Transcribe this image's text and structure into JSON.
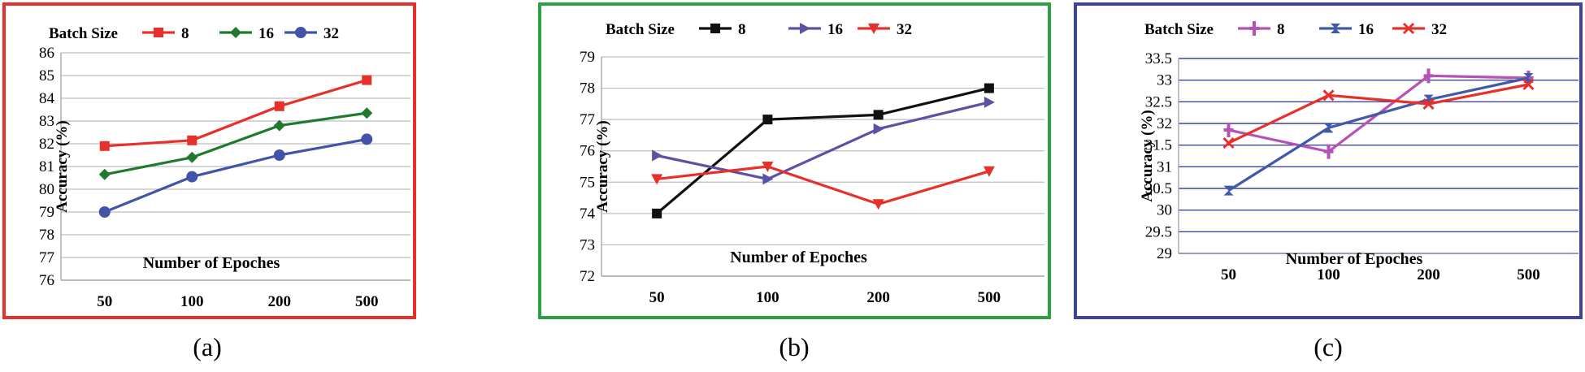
{
  "chart_data": [
    {
      "type": "line",
      "panel": "(a)",
      "frame_color": "#e8302a",
      "legend_title": "Batch Size",
      "categories": [
        "50",
        "100",
        "200",
        "500"
      ],
      "xlabel": "Number of Epoches",
      "ylabel": "Accuracy (%)",
      "ylim": [
        76,
        86
      ],
      "ystep": 1,
      "ytick_labels": [
        "76",
        "77",
        "78",
        "79",
        "80",
        "81",
        "82",
        "83",
        "84",
        "85",
        "86"
      ],
      "grid": true,
      "grid_color": "#bdbdbd",
      "series": [
        {
          "name": "8",
          "color": "#e8302a",
          "marker": "square",
          "values": [
            81.9,
            82.15,
            83.65,
            84.8
          ]
        },
        {
          "name": "16",
          "color": "#1f7a2e",
          "marker": "diamond",
          "values": [
            80.65,
            81.4,
            82.8,
            83.35
          ]
        },
        {
          "name": "32",
          "color": "#4253a8",
          "marker": "circle",
          "values": [
            79.0,
            80.55,
            81.5,
            82.2
          ]
        }
      ]
    },
    {
      "type": "line",
      "panel": "(b)",
      "frame_color": "#2ea043",
      "legend_title": "Batch Size",
      "categories": [
        "50",
        "100",
        "200",
        "500"
      ],
      "xlabel": "Number of Epoches",
      "ylabel": "Accuracy (%)",
      "ylim": [
        72,
        79
      ],
      "ystep": 1,
      "ytick_labels": [
        "72",
        "73",
        "74",
        "75",
        "76",
        "77",
        "78",
        "79"
      ],
      "grid": true,
      "grid_color": "#bdbdbd",
      "series": [
        {
          "name": "8",
          "color": "#111111",
          "marker": "square",
          "values": [
            74.0,
            77.0,
            77.15,
            78.0
          ]
        },
        {
          "name": "16",
          "color": "#5a52a3",
          "marker": "triangle-right",
          "values": [
            75.85,
            75.1,
            76.7,
            77.55
          ]
        },
        {
          "name": "32",
          "color": "#e8302a",
          "marker": "triangle-down",
          "values": [
            75.1,
            75.5,
            74.3,
            75.35
          ]
        }
      ]
    },
    {
      "type": "line",
      "panel": "(c)",
      "frame_color": "#3c44a0",
      "legend_title": "Batch Size",
      "categories": [
        "50",
        "100",
        "200",
        "500"
      ],
      "xlabel": "Number of Epoches",
      "ylabel": "Accuracy (%)",
      "ylim": [
        29,
        33.5
      ],
      "ystep": 0.5,
      "ytick_labels": [
        "29",
        "29.5",
        "30",
        "30.5",
        "31",
        "31.5",
        "32",
        "32.5",
        "33",
        "33.5"
      ],
      "grid": true,
      "grid_color": "#3c44a0",
      "series": [
        {
          "name": "8",
          "color": "#b552b5",
          "marker": "plus",
          "values": [
            31.85,
            31.35,
            33.1,
            33.05
          ]
        },
        {
          "name": "16",
          "color": "#3f5aa8",
          "marker": "hourglass",
          "values": [
            30.45,
            31.9,
            32.55,
            33.05
          ]
        },
        {
          "name": "32",
          "color": "#e8302a",
          "marker": "x",
          "values": [
            31.55,
            32.65,
            32.45,
            32.9
          ]
        }
      ]
    }
  ]
}
